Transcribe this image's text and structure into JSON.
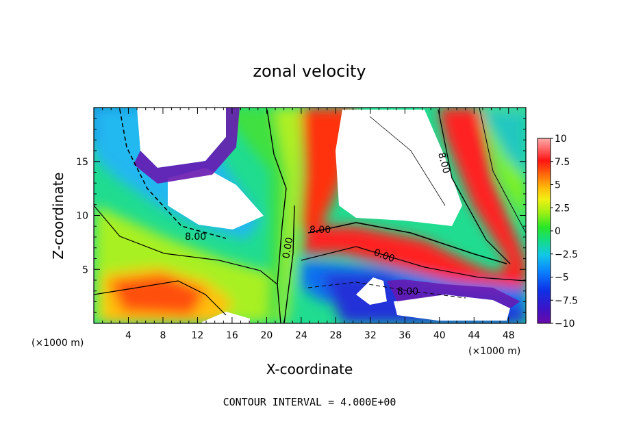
{
  "chart_data": {
    "type": "heatmap",
    "title": "zonal velocity",
    "xlabel": "X-coordinate",
    "ylabel": "Z-coordinate",
    "x_unit": "(×1000 m)",
    "z_unit": "(×1000 m)",
    "xlim": [
      0,
      50
    ],
    "ylim": [
      0,
      20
    ],
    "x_ticks": [
      "4",
      "8",
      "12",
      "16",
      "20",
      "24",
      "28",
      "32",
      "36",
      "40",
      "44",
      "48"
    ],
    "y_ticks": [
      "5",
      "10",
      "15"
    ],
    "colorbar": {
      "min": -10,
      "max": 10,
      "ticks": [
        "10",
        "7.5",
        "5",
        "2.5",
        "0",
        "−2.5",
        "−5",
        "−7.5",
        "−10"
      ]
    },
    "contour_labels": [
      "8.00",
      "0.00",
      "8.00",
      "0.00",
      "8.00",
      "8.00"
    ],
    "footer": "CONTOUR INTERVAL = 4.000E+00"
  }
}
